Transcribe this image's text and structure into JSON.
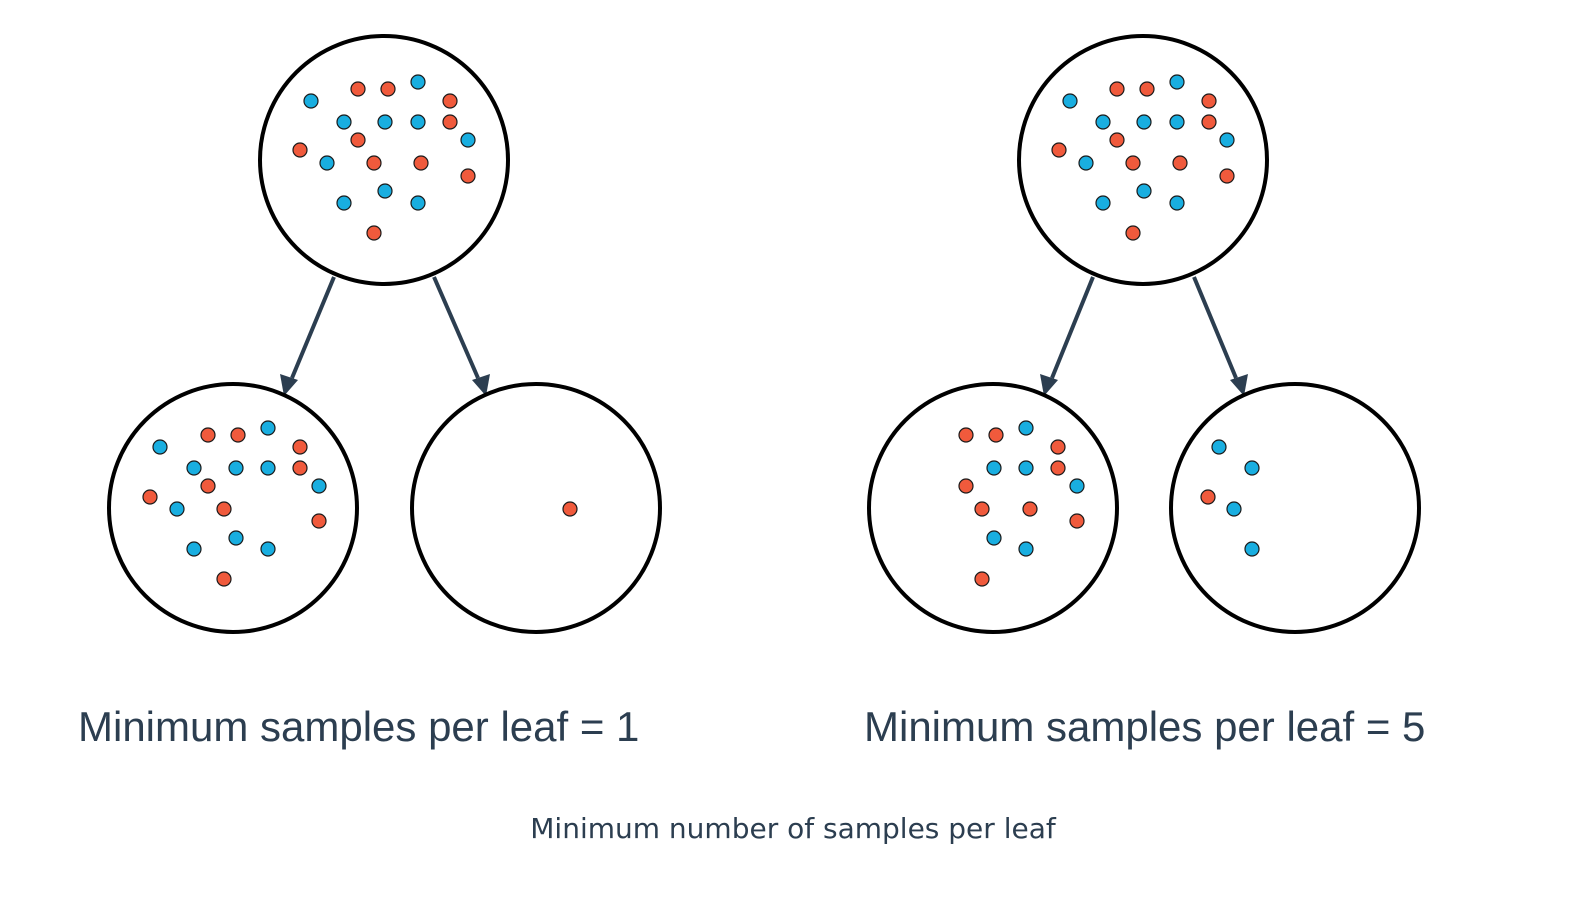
{
  "colors": {
    "red": "#f05a3c",
    "blue": "#19aee0",
    "outline": "#000000",
    "arrow": "#2c3e50",
    "text": "#2c3e50"
  },
  "panels": [
    {
      "label": "Minimum samples per leaf = 1",
      "root": {
        "red_count": 11,
        "blue_count": 11
      },
      "left_leaf": {
        "red_count": 10,
        "blue_count": 11
      },
      "right_leaf": {
        "red_count": 1,
        "blue_count": 0
      }
    },
    {
      "label": "Minimum samples per leaf = 5",
      "root": {
        "red_count": 11,
        "blue_count": 11
      },
      "left_leaf": {
        "red_count": 10,
        "blue_count": 7
      },
      "right_leaf": {
        "red_count": 1,
        "blue_count": 4
      }
    }
  ],
  "caption": "Minimum number of samples per leaf"
}
